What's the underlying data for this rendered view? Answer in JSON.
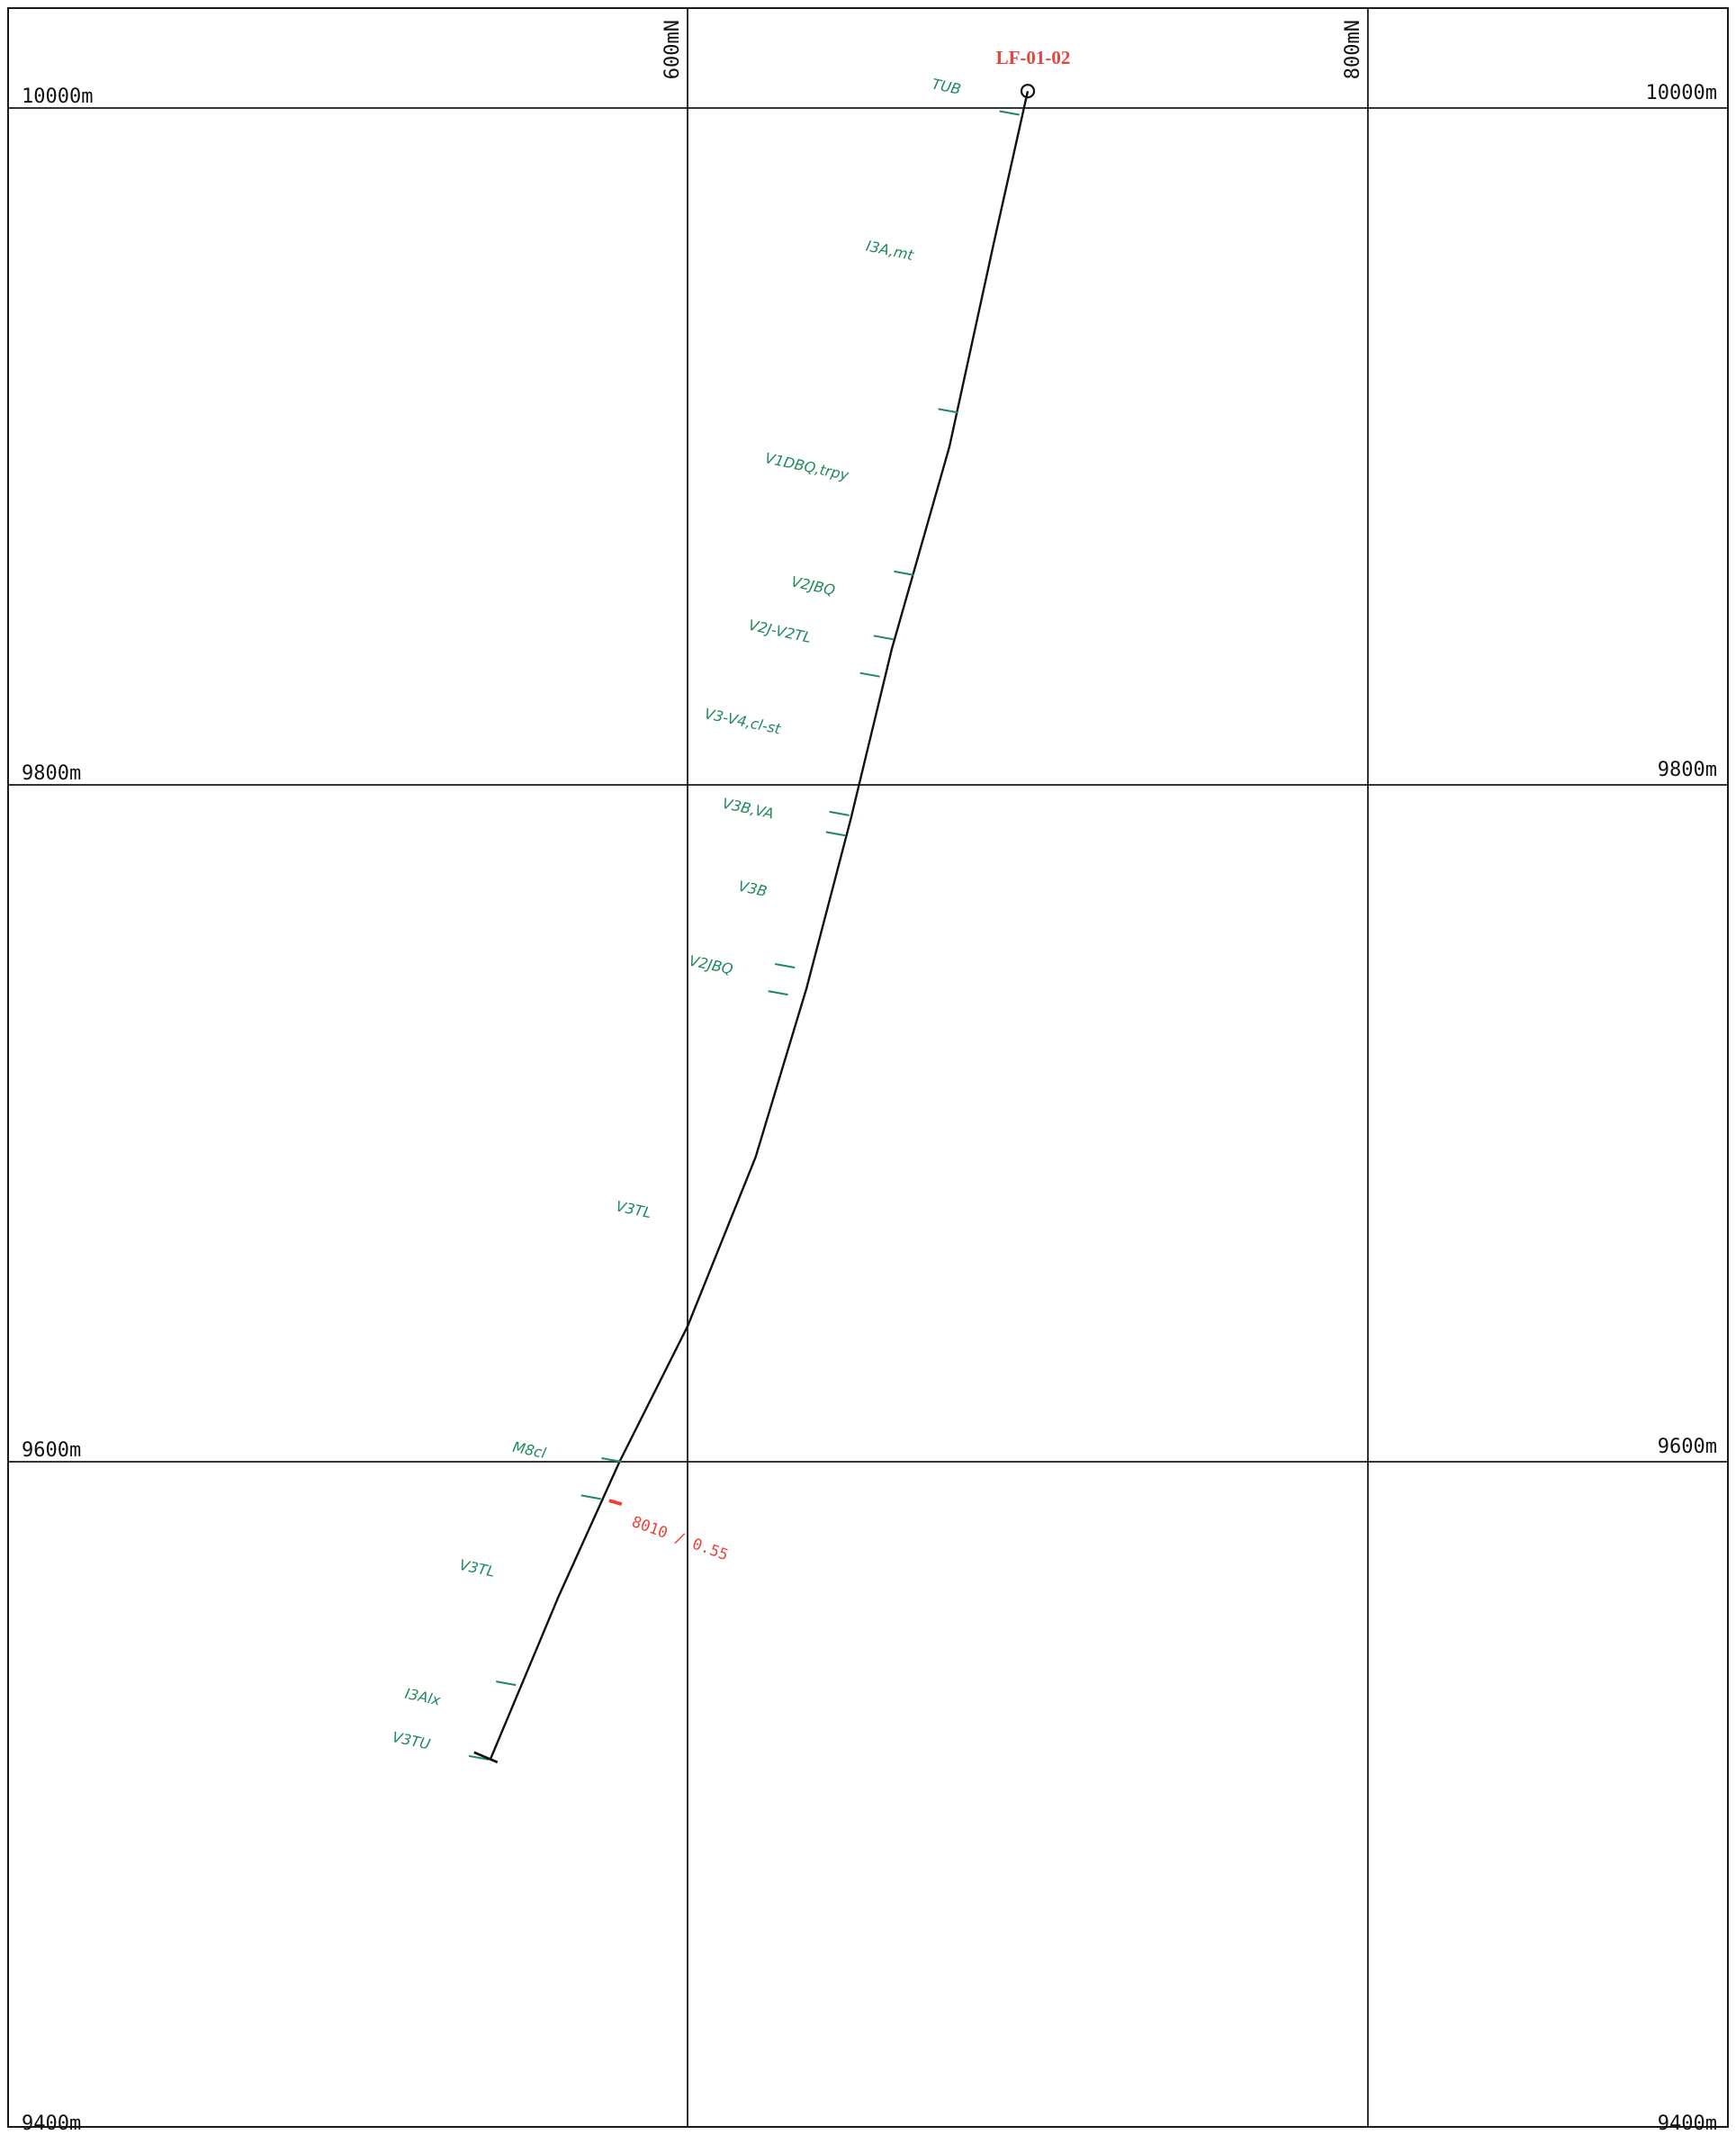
{
  "colors": {
    "grid": "#1a1a1a",
    "trace": "#111111",
    "unit": "#1e8a5a",
    "hole": "#e8443a",
    "assay": "#e8443a"
  },
  "section": {
    "elevation_labels": [
      {
        "value": 10000,
        "text": "10000m"
      },
      {
        "value": 9800,
        "text": "9800m"
      },
      {
        "value": 9600,
        "text": "9600m"
      },
      {
        "value": 9400,
        "text": "9400m"
      }
    ],
    "northing_labels": [
      {
        "value": 600,
        "text": "600mN"
      },
      {
        "value": 800,
        "text": "800mN"
      }
    ]
  },
  "drillhole": {
    "name": "LF-01-02",
    "collar": {
      "northing": 700,
      "elevation": 10005
    },
    "end": {
      "northing": 542,
      "elevation": 9512
    },
    "trace": [
      [
        700,
        10005
      ],
      [
        690,
        9960
      ],
      [
        677,
        9900
      ],
      [
        660,
        9840
      ],
      [
        648,
        9790
      ],
      [
        635,
        9740
      ],
      [
        620,
        9690
      ],
      [
        600,
        9640
      ],
      [
        580,
        9600
      ],
      [
        562,
        9560
      ],
      [
        542,
        9512
      ]
    ],
    "units": [
      {
        "text": "TUB",
        "northing": 680,
        "elevation": 10004
      },
      {
        "text": "I3A,mt",
        "northing": 666,
        "elevation": 9955
      },
      {
        "text": "V1DBQ,trpy",
        "northing": 647,
        "elevation": 9890
      },
      {
        "text": "V2JBQ",
        "northing": 643,
        "elevation": 9856
      },
      {
        "text": "V2J-V2TL",
        "northing": 636,
        "elevation": 9842
      },
      {
        "text": "V3-V4,cl-st",
        "northing": 627,
        "elevation": 9815
      },
      {
        "text": "V3B,VA",
        "northing": 625,
        "elevation": 9790
      },
      {
        "text": "V3B",
        "northing": 623,
        "elevation": 9767
      },
      {
        "text": "V2JBQ",
        "northing": 613,
        "elevation": 9744
      },
      {
        "text": "V3TL",
        "northing": 589,
        "elevation": 9672
      },
      {
        "text": "M8cl",
        "northing": 558,
        "elevation": 9601
      },
      {
        "text": "V3TL",
        "northing": 543,
        "elevation": 9566
      },
      {
        "text": "I3Alx",
        "northing": 527,
        "elevation": 9528
      },
      {
        "text": "V3TU",
        "northing": 524,
        "elevation": 9515
      }
    ],
    "contacts": [
      {
        "northing": 697,
        "elevation": 9998
      },
      {
        "northing": 679,
        "elevation": 9910
      },
      {
        "northing": 666,
        "elevation": 9862
      },
      {
        "northing": 660,
        "elevation": 9843
      },
      {
        "northing": 656,
        "elevation": 9832
      },
      {
        "northing": 647,
        "elevation": 9791
      },
      {
        "northing": 646,
        "elevation": 9785
      },
      {
        "northing": 631,
        "elevation": 9746
      },
      {
        "northing": 629,
        "elevation": 9738
      },
      {
        "northing": 580,
        "elevation": 9600
      },
      {
        "northing": 574,
        "elevation": 9589
      },
      {
        "northing": 549,
        "elevation": 9534
      },
      {
        "northing": 541,
        "elevation": 9512
      }
    ],
    "assay": {
      "text": "8010 / 0.55",
      "northing": 578,
      "elevation": 9588
    }
  }
}
